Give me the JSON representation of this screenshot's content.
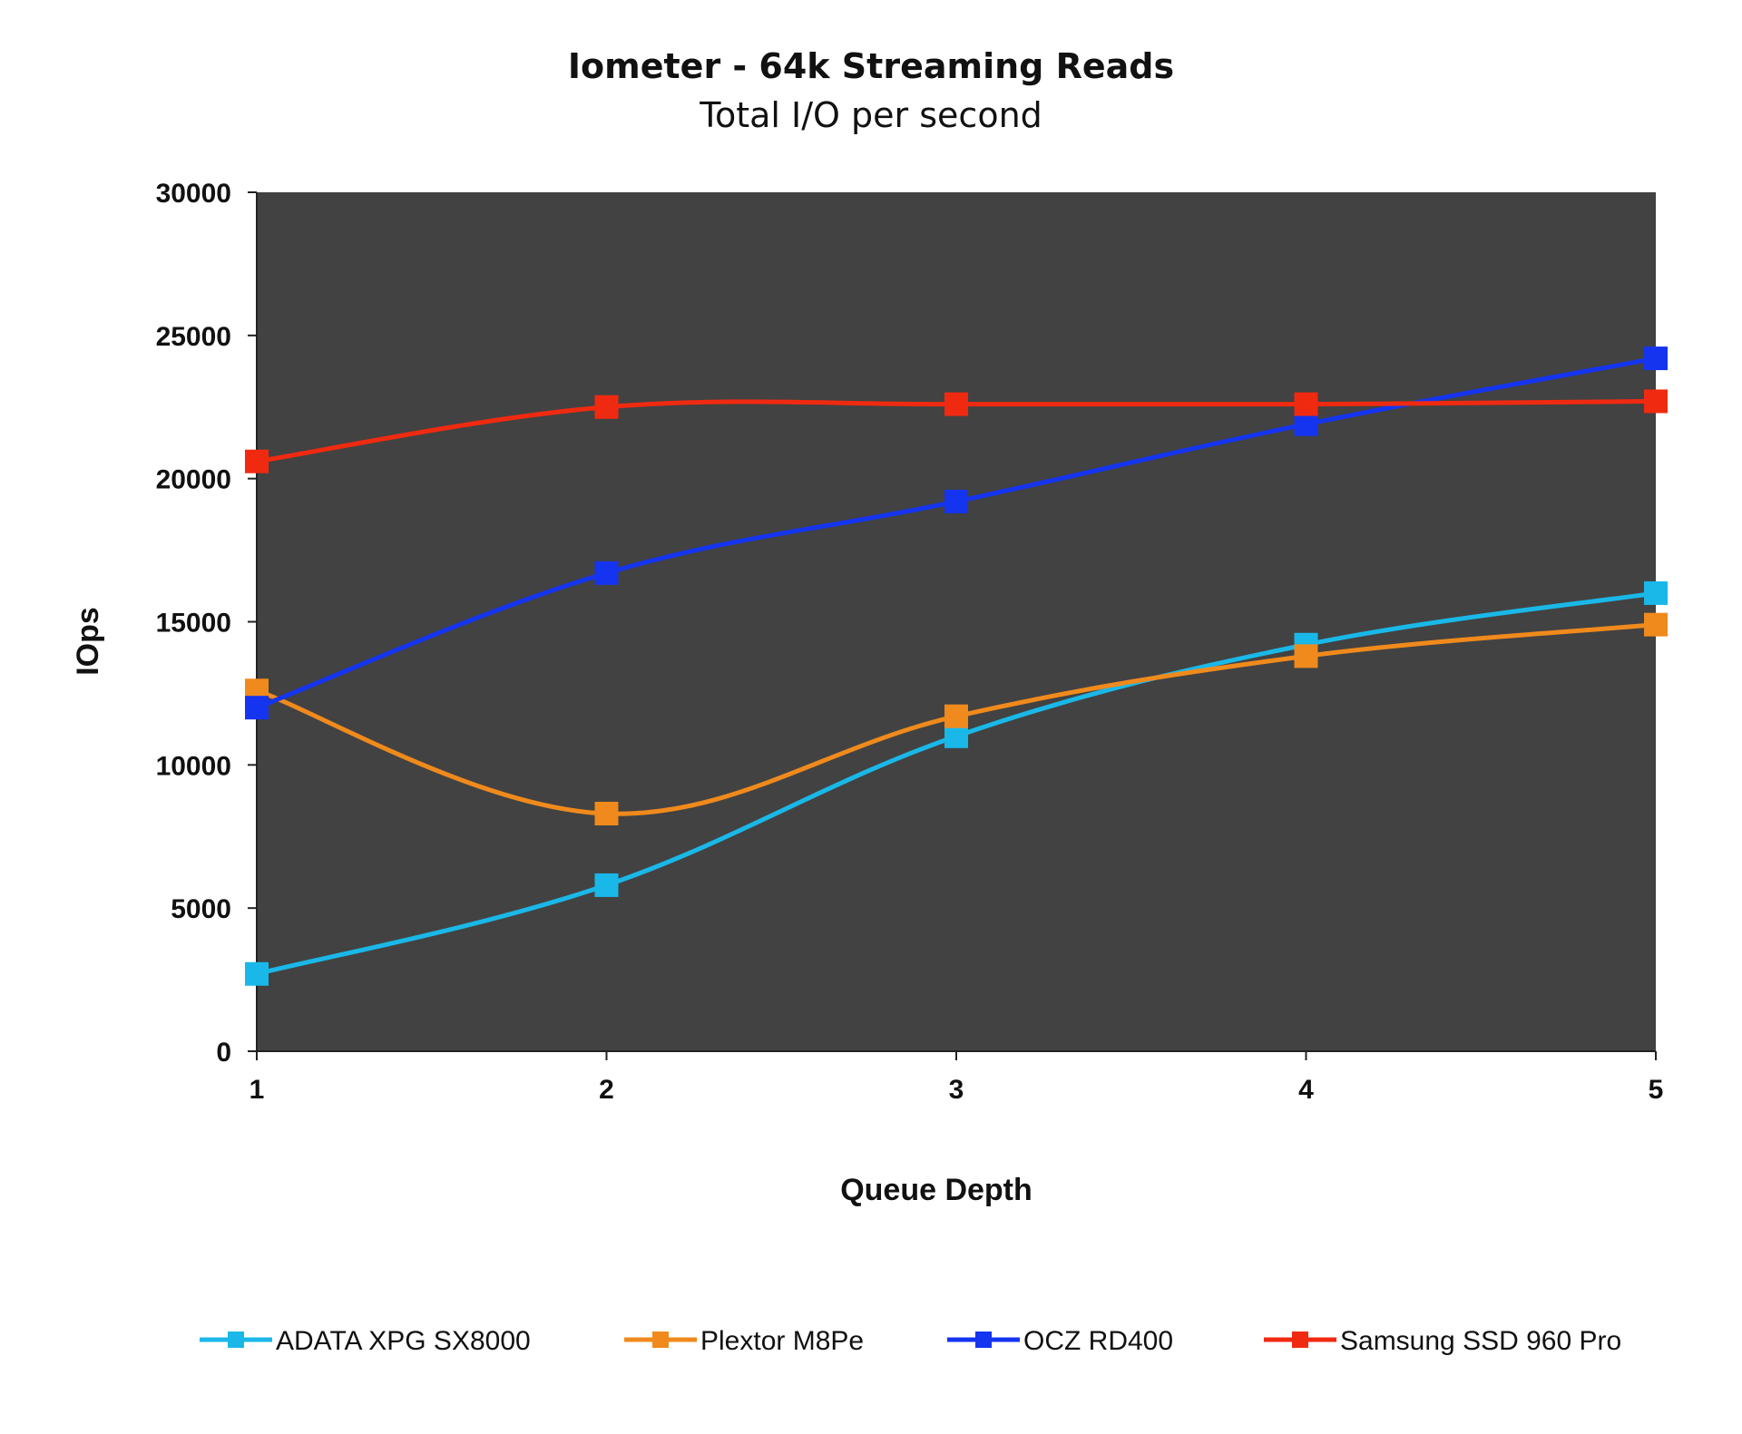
{
  "chart_data": {
    "type": "line",
    "title": "Iometer - 64k Streaming Reads",
    "subtitle": "Total I/O per second",
    "xlabel": "Queue Depth",
    "ylabel": "IOps",
    "x": [
      1,
      2,
      3,
      4,
      5
    ],
    "x_tick_labels": [
      "1",
      "2",
      "3",
      "4",
      "5"
    ],
    "ylim": [
      0,
      30000
    ],
    "y_ticks": [
      0,
      5000,
      10000,
      15000,
      20000,
      25000,
      30000
    ],
    "y_tick_labels": [
      "0",
      "5000",
      "10000",
      "15000",
      "20000",
      "25000",
      "30000"
    ],
    "grid": false,
    "plot_background": "#424242",
    "legend_position": "bottom",
    "series": [
      {
        "name": "ADATA XPG SX8000",
        "color": "#1ab8e8",
        "values": [
          2700,
          5800,
          11000,
          14200,
          16000
        ]
      },
      {
        "name": "Plextor M8Pe",
        "color": "#f08a1c",
        "values": [
          12600,
          8300,
          11700,
          13800,
          14900
        ]
      },
      {
        "name": "OCZ RD400",
        "color": "#1434f0",
        "values": [
          12000,
          16700,
          19200,
          21900,
          24200
        ]
      },
      {
        "name": "Samsung SSD 960 Pro",
        "color": "#f02a10",
        "values": [
          20600,
          22500,
          22600,
          22600,
          22700
        ]
      }
    ]
  }
}
